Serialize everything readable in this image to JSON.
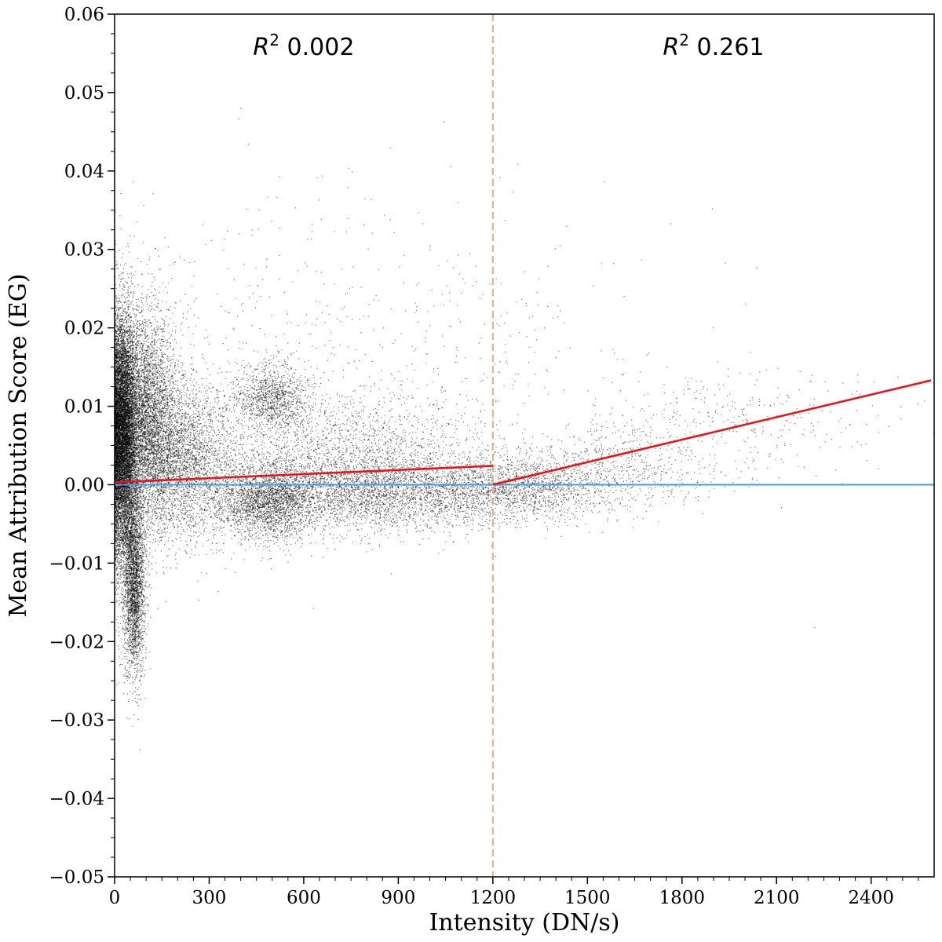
{
  "chart_data": {
    "type": "scatter",
    "title": "",
    "xlabel": "Intensity (DN/s)",
    "ylabel": "Mean Attribution Score (EG)",
    "xlim": [
      0,
      2600
    ],
    "ylim": [
      -0.05,
      0.06
    ],
    "x_ticks": [
      "0",
      "300",
      "600",
      "900",
      "1200",
      "1500",
      "1800",
      "2100",
      "2400"
    ],
    "y_ticks": [
      "0.06",
      "0.05",
      "0.04",
      "0.03",
      "0.02",
      "0.01",
      "0.00",
      "−0.01",
      "−0.02",
      "−0.03",
      "−0.04",
      "−0.05"
    ],
    "grid": false,
    "colors": {
      "points": "#000000",
      "fit_line": "#e8141a",
      "zero_line": "#4a9be6",
      "split_line": "#e0b07a"
    },
    "split_x": 1200,
    "zero_y": 0.0,
    "fits": [
      {
        "label_prefix": "R",
        "label_sup": "2",
        "r2": "0.002",
        "x": [
          0,
          1200
        ],
        "y": [
          0.0003,
          0.0024
        ]
      },
      {
        "label_prefix": "R",
        "label_sup": "2",
        "r2": "0.261",
        "x": [
          1200,
          2590
        ],
        "y": [
          0.0,
          0.0133
        ]
      }
    ],
    "clusters": [
      {
        "n": 9000,
        "x_mean": 25,
        "x_sd": 22,
        "y_mean": 0.006,
        "y_sd": 0.0075
      },
      {
        "n": 5000,
        "x_mean": 90,
        "x_sd": 55,
        "y_mean": 0.009,
        "y_sd": 0.0065
      },
      {
        "n": 3000,
        "x_mean": 60,
        "x_sd": 18,
        "y_mean": -0.012,
        "y_sd": 0.006
      },
      {
        "n": 3500,
        "x_mean": 200,
        "x_sd": 90,
        "y_mean": 0.003,
        "y_sd": 0.005
      },
      {
        "n": 2500,
        "x_mean": 480,
        "x_sd": 80,
        "y_mean": -0.002,
        "y_sd": 0.0025
      },
      {
        "n": 1200,
        "x_mean": 500,
        "x_sd": 60,
        "y_mean": 0.011,
        "y_sd": 0.0022
      },
      {
        "n": 3200,
        "x_mean": 800,
        "x_sd": 200,
        "y_mean": -0.001,
        "y_sd": 0.0025
      },
      {
        "n": 1600,
        "x_mean": 750,
        "x_sd": 220,
        "y_mean": 0.005,
        "y_sd": 0.0035
      },
      {
        "n": 1800,
        "x_mean": 1250,
        "x_sd": 160,
        "y_mean": -0.0005,
        "y_sd": 0.002
      },
      {
        "n": 800,
        "x_mean": 1550,
        "x_sd": 200,
        "y_mean": 0.002,
        "y_sd": 0.0025
      },
      {
        "n": 350,
        "x_mean": 1950,
        "x_sd": 250,
        "y_mean": 0.0085,
        "y_sd": 0.003
      },
      {
        "n": 600,
        "x_mean": 700,
        "x_sd": 500,
        "y_mean": 0.018,
        "y_sd": 0.01
      }
    ]
  }
}
